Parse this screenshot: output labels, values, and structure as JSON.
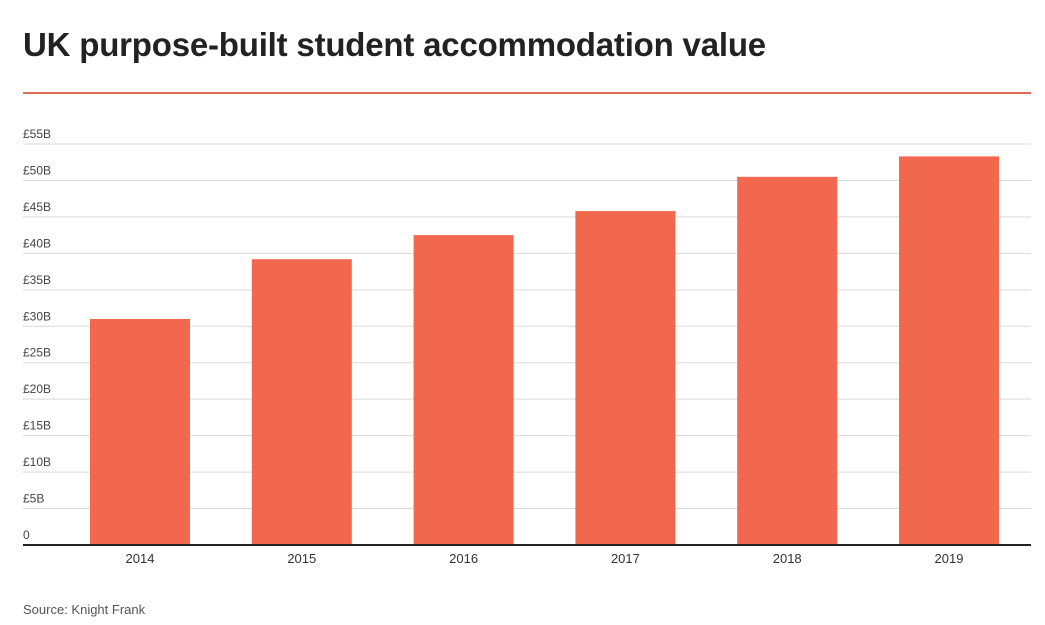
{
  "title": "UK purpose-built student accommodation value",
  "source": "Source: Knight Frank",
  "colors": {
    "bar": "#f2684f",
    "rule": "#e36a5a",
    "grid": "#d9d9d9",
    "axis": "#222222"
  },
  "chart_data": {
    "type": "bar",
    "title": "UK purpose-built student accommodation value",
    "xlabel": "",
    "ylabel": "",
    "categories": [
      "2014",
      "2015",
      "2016",
      "2017",
      "2018",
      "2019"
    ],
    "values": [
      31,
      39.2,
      42.5,
      45.8,
      50.5,
      53.3
    ],
    "unit": "£B",
    "ylim": [
      0,
      55
    ],
    "yticks": [
      0,
      5,
      10,
      15,
      20,
      25,
      30,
      35,
      40,
      45,
      50,
      55
    ],
    "ytick_labels": [
      "0",
      "£5B",
      "£10B",
      "£15B",
      "£20B",
      "£25B",
      "£30B",
      "£35B",
      "£40B",
      "£45B",
      "£50B",
      "£55B"
    ],
    "grid": true,
    "legend": "none"
  }
}
